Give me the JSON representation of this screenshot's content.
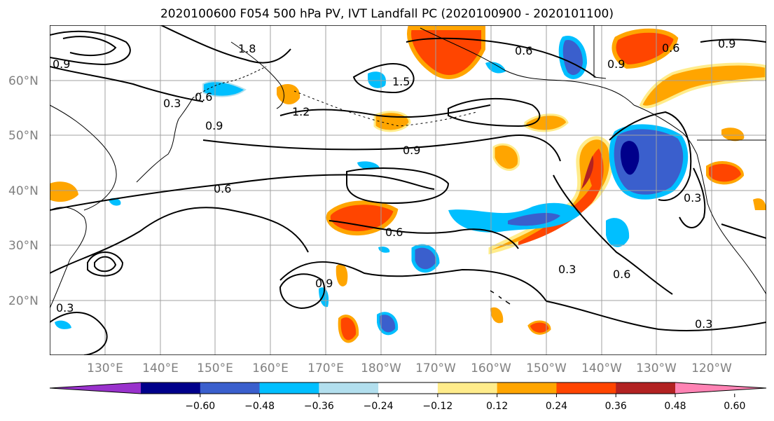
{
  "title": "2020100600 F054 500 hPa PV, IVT Landfall PC (2020100900 - 2020101100)",
  "lat_labels": [
    "60°N",
    "50°N",
    "40°N",
    "30°N",
    "20°N"
  ],
  "lon_labels": [
    "130°E",
    "140°E",
    "150°E",
    "160°E",
    "170°E",
    "180°W",
    "170°W",
    "160°W",
    "150°W",
    "140°W",
    "130°W",
    "120°W"
  ],
  "colorbar": {
    "colors": [
      "#9932cc",
      "#00008b",
      "#3a5fcd",
      "#00bfff",
      "#b2dfee",
      "#ffffff",
      "#ffec8b",
      "#ffa500",
      "#ff4500",
      "#b22222",
      "#ff83b4"
    ],
    "tick_labels": [
      "−0.60",
      "−0.48",
      "−0.36",
      "−0.24",
      "−0.12",
      "0.12",
      "0.24",
      "0.36",
      "0.48",
      "0.60"
    ]
  },
  "contour_labels": [
    "0.3",
    "0.6",
    "0.9",
    "1.2",
    "1.5",
    "1.8"
  ],
  "ivt_features": [
    {
      "name": "subtropical-plume-orange",
      "category": "positive"
    },
    {
      "name": "northeast-pacific-blue",
      "category": "negative"
    }
  ]
}
